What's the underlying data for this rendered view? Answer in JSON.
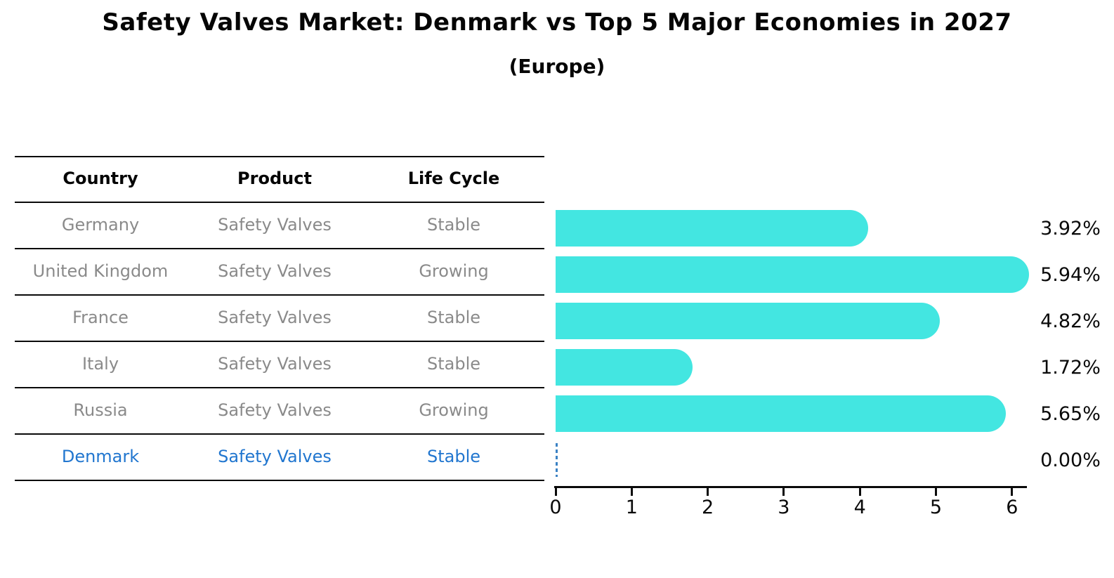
{
  "title": "Safety Valves Market: Denmark vs Top 5 Major Economies in 2027",
  "subtitle": "(Europe)",
  "table": {
    "headers": [
      "Country",
      "Product",
      "Life Cycle"
    ],
    "rows": [
      {
        "country": "Germany",
        "product": "Safety Valves",
        "life_cycle": "Stable",
        "highlight": false
      },
      {
        "country": "United Kingdom",
        "product": "Safety Valves",
        "life_cycle": "Growing",
        "highlight": false
      },
      {
        "country": "France",
        "product": "Safety Valves",
        "life_cycle": "Stable",
        "highlight": false
      },
      {
        "country": "Italy",
        "product": "Safety Valves",
        "life_cycle": "Stable",
        "highlight": false
      },
      {
        "country": "Russia",
        "product": "Safety Valves",
        "life_cycle": "Growing",
        "highlight": false
      },
      {
        "country": "Denmark",
        "product": "Safety Valves",
        "life_cycle": "Stable",
        "highlight": true
      }
    ]
  },
  "chart_data": {
    "type": "bar",
    "orientation": "horizontal",
    "title": "Safety Valves Market: Denmark vs Top 5 Major Economies in 2027",
    "subtitle": "(Europe)",
    "categories": [
      "Germany",
      "United Kingdom",
      "France",
      "Italy",
      "Russia",
      "Denmark"
    ],
    "values": [
      3.92,
      5.94,
      4.82,
      1.72,
      5.65,
      0.0
    ],
    "value_labels": [
      "3.92%",
      "5.94%",
      "4.82%",
      "1.72%",
      "5.65%",
      "0.00%"
    ],
    "x_ticks": [
      0,
      1,
      2,
      3,
      4,
      5,
      6
    ],
    "xlim": [
      0,
      6.2
    ],
    "xlabel": "",
    "ylabel": "",
    "grid": false,
    "legend": false,
    "bar_color": "#43E6E1",
    "zero_marker": "dashed-line"
  },
  "colors": {
    "bar": "#43E6E1",
    "highlight": "#2176cf",
    "muted_text": "#8a8a8a",
    "marker_dash": "#3b82c4",
    "text": "#0a0a0a"
  }
}
